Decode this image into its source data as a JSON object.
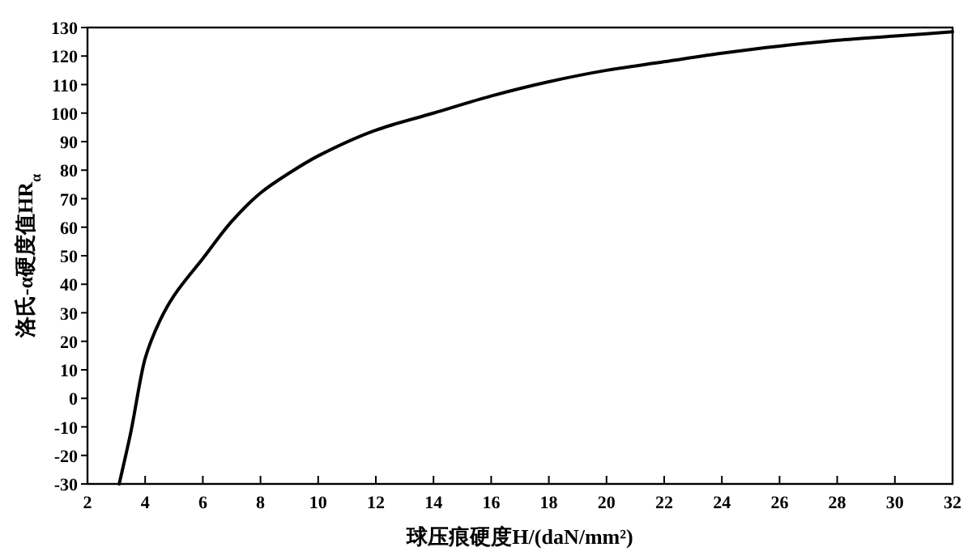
{
  "chart_data": {
    "type": "line",
    "xlabel": "球压痕硬度H/(daN/mm²)",
    "ylabel": "洛氏-α硬度值HR$_{α}$",
    "x": [
      3.1,
      3.5,
      4,
      4.5,
      5,
      6,
      7,
      8,
      9,
      10,
      12,
      14,
      16,
      18,
      20,
      22,
      24,
      26,
      28,
      30,
      32
    ],
    "series": [
      {
        "color": "#000000",
        "values": [
          -30,
          -12,
          14,
          27,
          36,
          49,
          62,
          72,
          79,
          85,
          94,
          100,
          106,
          111,
          115,
          118,
          121,
          123.5,
          125.5,
          127,
          128.5
        ]
      }
    ],
    "xlim": [
      2,
      32
    ],
    "xticks": [
      2,
      4,
      6,
      8,
      10,
      12,
      14,
      16,
      18,
      20,
      22,
      24,
      26,
      28,
      30,
      32
    ],
    "ylim": [
      -30,
      130
    ],
    "yticks": [
      -30,
      -20,
      -10,
      0,
      10,
      20,
      30,
      40,
      50,
      60,
      70,
      80,
      90,
      100,
      110,
      120,
      130
    ],
    "grid": false,
    "marker": "none",
    "line_style": "solid"
  }
}
